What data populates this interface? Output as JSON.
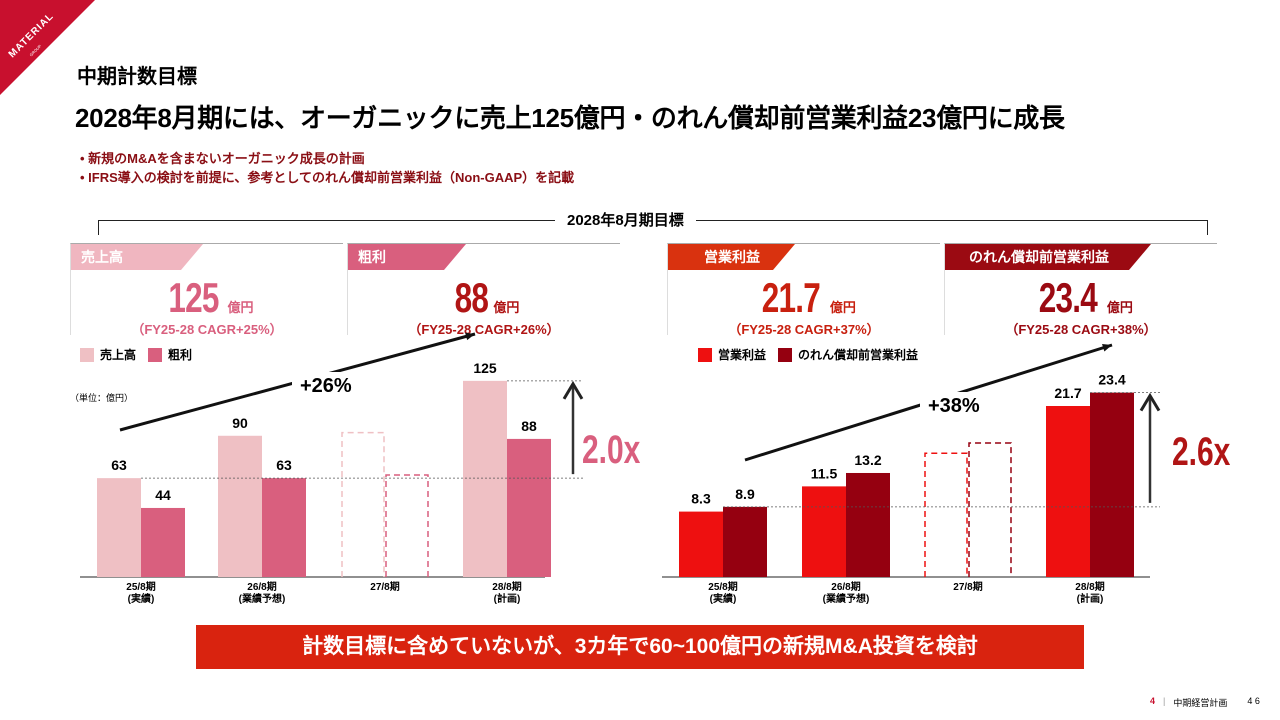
{
  "logo": {
    "name": "MATERIAL",
    "sub": "GROUP"
  },
  "section_title": "中期計数目標",
  "headline": "2028年8月期には、オーガニックに売上125億円・のれん償却前営業利益23億円に成長",
  "bullets": [
    "•  新規のM&Aを含まないオーガニック成長の計画",
    "•  IFRS導入の検討を前提に、参考としてのれん償却前営業利益（Non-GAAP）を記載"
  ],
  "target_label": "2028年8月期目標",
  "kpis": [
    {
      "tag": "売上高",
      "value": "125",
      "unit": "億円",
      "cagr": "（FY25-28 CAGR+25%）",
      "tag_color": "#f0b6c0",
      "value_color": "#d95f7e"
    },
    {
      "tag": "粗利",
      "value": "88",
      "unit": "億円",
      "cagr": "（FY25-28 CAGR+26%）",
      "tag_color": "#d95f7e",
      "value_color": "#b01515"
    },
    {
      "tag": "営業利益",
      "value": "21.7",
      "unit": "億円",
      "cagr": "（FY25-28 CAGR+37%）",
      "tag_color": "#d9320f",
      "value_color": "#c8200f"
    },
    {
      "tag": "のれん償却前営業利益",
      "value": "23.4",
      "unit": "億円",
      "cagr": "（FY25-28 CAGR+38%）",
      "tag_color": "#9b0a12",
      "value_color": "#9b0a12"
    }
  ],
  "unit_label": "（単位：億円）",
  "chart_data": [
    {
      "type": "bar",
      "categories": [
        "25/8期\n(実績)",
        "26/8期\n(業績予想)",
        "27/8期",
        "28/8期\n(計画)"
      ],
      "series": [
        {
          "name": "売上高",
          "color": "#efc0c4",
          "values": [
            63,
            90,
            null,
            125
          ],
          "placeholder": 92
        },
        {
          "name": "粗利",
          "color": "#d95f7e",
          "values": [
            44,
            63,
            null,
            88
          ],
          "placeholder": 65
        }
      ],
      "annotations": {
        "growth": "+26%",
        "multiple": "2.0x",
        "multiple_color": "#d95f7e"
      },
      "ylim": [
        0,
        130
      ]
    },
    {
      "type": "bar",
      "categories": [
        "25/8期\n(実績)",
        "26/8期\n(業績予想)",
        "27/8期",
        "28/8期\n(計画)"
      ],
      "series": [
        {
          "name": "営業利益",
          "color": "#ee1010",
          "values": [
            8.3,
            11.5,
            null,
            21.7
          ],
          "placeholder": 15.7
        },
        {
          "name": "のれん償却前営業利益",
          "color": "#950010",
          "values": [
            8.9,
            13.2,
            null,
            23.4
          ],
          "placeholder": 17.0
        }
      ],
      "annotations": {
        "growth": "+38%",
        "multiple": "2.6x",
        "multiple_color": "#b01515"
      },
      "ylim": [
        0,
        25
      ]
    }
  ],
  "footer_banner": "計数目標に含めていないが、3カ年で60~100億円の新規M&A投資を検討",
  "footer": {
    "section_no": "4",
    "sep": "|",
    "section": "中期経営計画",
    "page": "4 6"
  }
}
